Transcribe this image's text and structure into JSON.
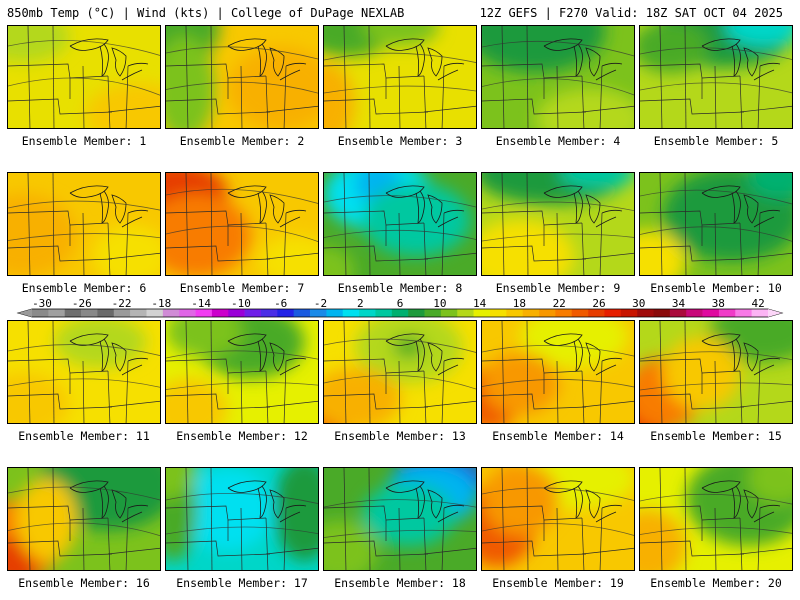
{
  "header": {
    "left": "850mb Temp (°C) | Wind (kts) | College of DuPage NEXLAB",
    "right": "12Z GEFS | F270 Valid: 18Z SAT OCT 04 2025"
  },
  "colorbar": {
    "labels": [
      "-30",
      "-26",
      "-22",
      "-18",
      "-14",
      "-10",
      "-6",
      "-2",
      "2",
      "6",
      "10",
      "14",
      "18",
      "22",
      "26",
      "30",
      "34",
      "38",
      "42"
    ],
    "colors": [
      "#8a8a8a",
      "#a0a0a0",
      "#6f6f6f",
      "#888888",
      "#6a6a6a",
      "#9a9a9a",
      "#b4b4b4",
      "#d2d2d2",
      "#d08cd6",
      "#e066e6",
      "#f23cf2",
      "#cc00cc",
      "#9a00d8",
      "#6f1fe8",
      "#4a2ee6",
      "#2222e6",
      "#1a5ae0",
      "#1a8ae8",
      "#00b4f0",
      "#00e0f0",
      "#00d6c8",
      "#00c8a0",
      "#00b070",
      "#1e9a3c",
      "#4aaa28",
      "#7cc21c",
      "#b4d81a",
      "#e6f000",
      "#f6e000",
      "#f8c800",
      "#f8b000",
      "#f89800",
      "#f87c00",
      "#f05a00",
      "#e63c00",
      "#e61e00",
      "#c81400",
      "#a00a0a",
      "#8a0a0a",
      "#aa0a3c",
      "#c8087a",
      "#e00aa0",
      "#f03cc8",
      "#f87ae6",
      "#fcb4f4"
    ]
  },
  "panels": [
    {
      "label": "Ensemble Member: 1",
      "base": "#e8e000",
      "blobs": [
        [
          "#b4d81a",
          0.1,
          0.1,
          0.3,
          0.25
        ],
        [
          "#f8c800",
          0.85,
          0.85,
          0.35,
          0.3
        ]
      ]
    },
    {
      "label": "Ensemble Member: 2",
      "base": "#f8c800",
      "blobs": [
        [
          "#4aaa28",
          0.0,
          0.0,
          0.35,
          0.45
        ],
        [
          "#7cc21c",
          0.12,
          0.6,
          0.2,
          0.5
        ],
        [
          "#f8b000",
          0.75,
          0.6,
          0.35,
          0.4
        ]
      ]
    },
    {
      "label": "Ensemble Member: 3",
      "base": "#e8e000",
      "blobs": [
        [
          "#4aaa28",
          0.15,
          0.05,
          0.3,
          0.25
        ],
        [
          "#f8b000",
          0.0,
          0.75,
          0.2,
          0.4
        ],
        [
          "#7cc21c",
          0.5,
          0.0,
          0.25,
          0.2
        ]
      ]
    },
    {
      "label": "Ensemble Member: 4",
      "base": "#7cc21c",
      "blobs": [
        [
          "#1e9a3c",
          0.35,
          0.05,
          0.45,
          0.4
        ],
        [
          "#b4d81a",
          0.7,
          0.9,
          0.35,
          0.3
        ]
      ]
    },
    {
      "label": "Ensemble Member: 5",
      "base": "#b4d81a",
      "blobs": [
        [
          "#1e9a3c",
          0.55,
          0.05,
          0.45,
          0.35
        ],
        [
          "#00d6c8",
          0.8,
          0.0,
          0.25,
          0.2
        ],
        [
          "#4aaa28",
          0.2,
          0.2,
          0.25,
          0.25
        ]
      ]
    },
    {
      "label": "Ensemble Member: 6",
      "base": "#f8c800",
      "blobs": [
        [
          "#f8b000",
          0.1,
          0.6,
          0.35,
          0.4
        ],
        [
          "#f6e000",
          0.8,
          0.8,
          0.25,
          0.3
        ]
      ]
    },
    {
      "label": "Ensemble Member: 7",
      "base": "#f8c800",
      "blobs": [
        [
          "#e63c00",
          0.05,
          0.2,
          0.35,
          0.3
        ],
        [
          "#f87c00",
          0.2,
          0.6,
          0.35,
          0.4
        ],
        [
          "#f6e000",
          0.85,
          0.85,
          0.25,
          0.25
        ]
      ]
    },
    {
      "label": "Ensemble Member: 8",
      "base": "#4aaa28",
      "blobs": [
        [
          "#00e0f0",
          0.35,
          0.2,
          0.35,
          0.35
        ],
        [
          "#00b4f0",
          0.35,
          0.1,
          0.15,
          0.2
        ],
        [
          "#00c8a0",
          0.6,
          0.45,
          0.35,
          0.35
        ],
        [
          "#7cc21c",
          0.0,
          0.95,
          0.2,
          0.25
        ]
      ]
    },
    {
      "label": "Ensemble Member: 9",
      "base": "#b4d81a",
      "blobs": [
        [
          "#1e9a3c",
          0.45,
          0.0,
          0.5,
          0.3
        ],
        [
          "#f6e000",
          0.25,
          0.8,
          0.35,
          0.35
        ],
        [
          "#00c8a0",
          0.75,
          0.0,
          0.25,
          0.15
        ]
      ]
    },
    {
      "label": "Ensemble Member: 10",
      "base": "#7cc21c",
      "blobs": [
        [
          "#1e9a3c",
          0.6,
          0.4,
          0.45,
          0.45
        ],
        [
          "#f6e000",
          0.05,
          0.85,
          0.25,
          0.3
        ],
        [
          "#00b070",
          0.9,
          0.05,
          0.2,
          0.2
        ]
      ]
    },
    {
      "label": "Ensemble Member: 11",
      "base": "#f6e000",
      "blobs": [
        [
          "#f8c800",
          0.1,
          0.8,
          0.3,
          0.3
        ],
        [
          "#b4d81a",
          0.6,
          0.2,
          0.3,
          0.25
        ]
      ]
    },
    {
      "label": "Ensemble Member: 12",
      "base": "#e6f000",
      "blobs": [
        [
          "#4aaa28",
          0.55,
          0.2,
          0.35,
          0.35
        ],
        [
          "#7cc21c",
          0.25,
          0.1,
          0.25,
          0.25
        ],
        [
          "#f8c800",
          0.15,
          0.85,
          0.25,
          0.3
        ]
      ]
    },
    {
      "label": "Ensemble Member: 13",
      "base": "#f6e000",
      "blobs": [
        [
          "#b4d81a",
          0.55,
          0.25,
          0.35,
          0.35
        ],
        [
          "#4aaa28",
          0.55,
          0.25,
          0.1,
          0.1
        ],
        [
          "#f05a00",
          0.0,
          0.9,
          0.2,
          0.25
        ],
        [
          "#f8b000",
          0.2,
          0.75,
          0.3,
          0.3
        ]
      ]
    },
    {
      "label": "Ensemble Member: 14",
      "base": "#f8c800",
      "blobs": [
        [
          "#f05a00",
          0.05,
          0.75,
          0.2,
          0.3
        ],
        [
          "#e6f000",
          0.6,
          0.15,
          0.35,
          0.3
        ],
        [
          "#f89800",
          0.25,
          0.6,
          0.25,
          0.3
        ]
      ]
    },
    {
      "label": "Ensemble Member: 15",
      "base": "#b4d81a",
      "blobs": [
        [
          "#e61e00",
          0.0,
          0.9,
          0.2,
          0.3
        ],
        [
          "#f87c00",
          0.15,
          0.7,
          0.25,
          0.35
        ],
        [
          "#4aaa28",
          0.8,
          0.1,
          0.35,
          0.3
        ],
        [
          "#f8c800",
          0.4,
          0.5,
          0.25,
          0.35
        ]
      ]
    },
    {
      "label": "Ensemble Member: 16",
      "base": "#7cc21c",
      "blobs": [
        [
          "#1e9a3c",
          0.65,
          0.15,
          0.45,
          0.45
        ],
        [
          "#f87c00",
          0.05,
          0.7,
          0.3,
          0.4
        ],
        [
          "#e63c00",
          0.05,
          0.9,
          0.15,
          0.25
        ],
        [
          "#f8c800",
          0.25,
          0.5,
          0.2,
          0.4
        ]
      ]
    },
    {
      "label": "Ensemble Member: 17",
      "base": "#00d6c8",
      "blobs": [
        [
          "#00e0f0",
          0.4,
          0.4,
          0.3,
          0.4
        ],
        [
          "#4aaa28",
          0.05,
          0.4,
          0.15,
          0.5
        ],
        [
          "#1e9a3c",
          0.9,
          0.4,
          0.2,
          0.5
        ],
        [
          "#7cc21c",
          0.0,
          0.0,
          0.2,
          0.3
        ]
      ]
    },
    {
      "label": "Ensemble Member: 18",
      "base": "#4aaa28",
      "blobs": [
        [
          "#1a5ae0",
          0.75,
          0.1,
          0.3,
          0.25
        ],
        [
          "#00b4f0",
          0.7,
          0.25,
          0.3,
          0.3
        ],
        [
          "#00c8a0",
          0.55,
          0.45,
          0.3,
          0.3
        ],
        [
          "#7cc21c",
          0.1,
          0.8,
          0.25,
          0.3
        ]
      ]
    },
    {
      "label": "Ensemble Member: 19",
      "base": "#f8c800",
      "blobs": [
        [
          "#f05a00",
          0.1,
          0.55,
          0.25,
          0.4
        ],
        [
          "#e6f000",
          0.6,
          0.1,
          0.4,
          0.3
        ],
        [
          "#f89800",
          0.25,
          0.3,
          0.25,
          0.35
        ]
      ]
    },
    {
      "label": "Ensemble Member: 20",
      "base": "#e6f000",
      "blobs": [
        [
          "#4aaa28",
          0.7,
          0.3,
          0.4,
          0.45
        ],
        [
          "#f8b000",
          0.05,
          0.75,
          0.25,
          0.35
        ],
        [
          "#7cc21c",
          0.9,
          0.1,
          0.2,
          0.25
        ]
      ]
    }
  ]
}
